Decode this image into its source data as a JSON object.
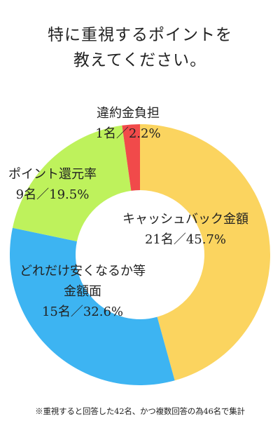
{
  "chart_data": {
    "type": "pie",
    "title_lines": [
      "特に重視するポイントを",
      "教えてください。"
    ],
    "slices": [
      {
        "label_lines": [
          "キャッシュバック金額"
        ],
        "value_text": "21名／45.7%",
        "count": 21,
        "percent": 45.7,
        "color": "#FBD45F"
      },
      {
        "label_lines": [
          "どれだけ安くなるか等",
          "金額面"
        ],
        "value_text": "15名／32.6%",
        "count": 15,
        "percent": 32.6,
        "color": "#3DB4F2"
      },
      {
        "label_lines": [
          "ポイント還元率"
        ],
        "value_text": "9名／19.5%",
        "count": 9,
        "percent": 19.5,
        "color": "#BEF25C"
      },
      {
        "label_lines": [
          "違約金負担"
        ],
        "value_text": "1名／2.2%",
        "count": 1,
        "percent": 2.2,
        "color": "#F14A4A"
      }
    ],
    "footnote": "※重視すると回答した42名、かつ複数回答の為46名で集計"
  }
}
